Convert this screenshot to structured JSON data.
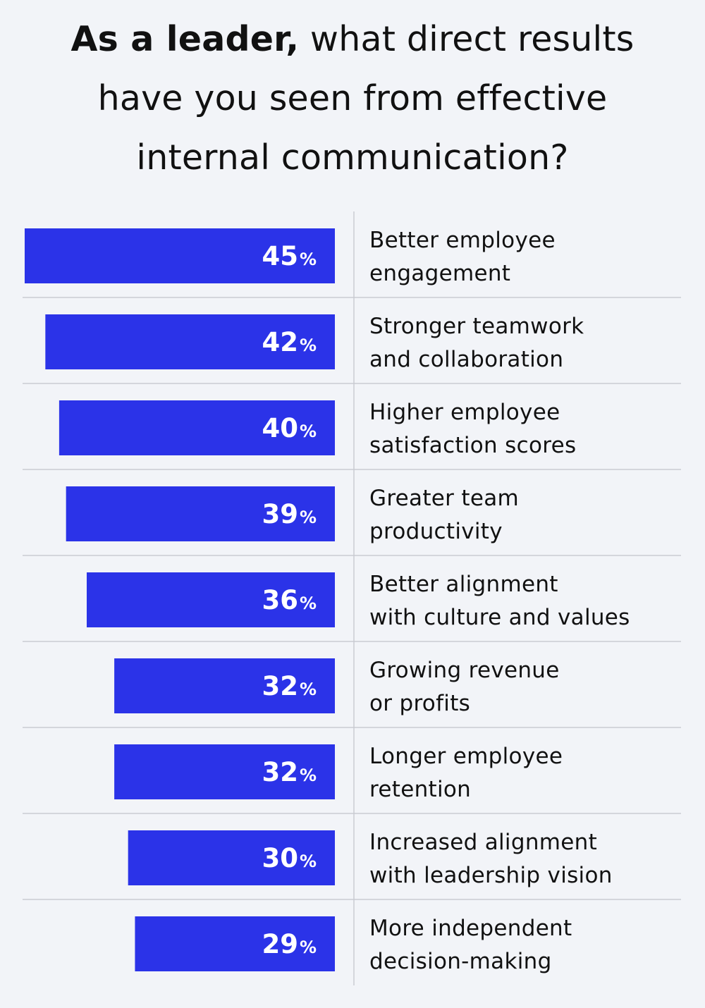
{
  "title": {
    "bold": "As a leader,",
    "line1_rest": " what direct results",
    "line2": "have you seen from effective",
    "line3": "internal communication?"
  },
  "colors": {
    "bar": "#2b33e8",
    "background": "#f2f4f8",
    "divider": "#c9ccd2",
    "bar_text": "#ffffff"
  },
  "chart_data": {
    "type": "bar",
    "orientation": "horizontal",
    "unit": "%",
    "xlim": [
      0,
      45
    ],
    "grid": false,
    "legend": "none",
    "categories": [
      [
        "Better employee",
        "engagement"
      ],
      [
        "Stronger teamwork",
        "and collaboration"
      ],
      [
        "Higher employee",
        "satisfaction scores"
      ],
      [
        "Greater team",
        "productivity"
      ],
      [
        "Better alignment",
        "with culture and values"
      ],
      [
        "Growing revenue",
        "or profits"
      ],
      [
        "Longer employee",
        "retention"
      ],
      [
        "Increased alignment",
        "with leadership vision"
      ],
      [
        "More independent",
        "decision-making"
      ]
    ],
    "values": [
      45,
      42,
      40,
      39,
      36,
      32,
      32,
      30,
      29
    ]
  }
}
